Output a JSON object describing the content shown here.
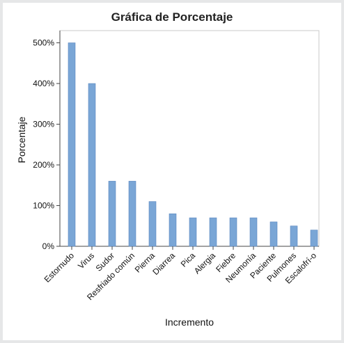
{
  "chart_data": {
    "type": "bar",
    "title": "Gráfica de Porcentaje",
    "xlabel": "Incremento",
    "ylabel": "Porcentaje",
    "categories": [
      "Estornudo",
      "Virus",
      "Sudor",
      "Resfriado común",
      "Pierna",
      "Diarrea",
      "Pica",
      "Alergia",
      "Fiebre",
      "Neumonía",
      "Paciente",
      "Pulmones",
      "Escalofrí-o"
    ],
    "values": [
      500,
      400,
      160,
      160,
      110,
      80,
      70,
      70,
      70,
      70,
      60,
      50,
      40
    ],
    "yticks": [
      "0%",
      "100%",
      "200%",
      "300%",
      "400%",
      "500%"
    ],
    "ylim": [
      0,
      530
    ],
    "grid": false,
    "bar_color": "#7aa6d6",
    "bar_edge_color": "#5b88bf"
  }
}
